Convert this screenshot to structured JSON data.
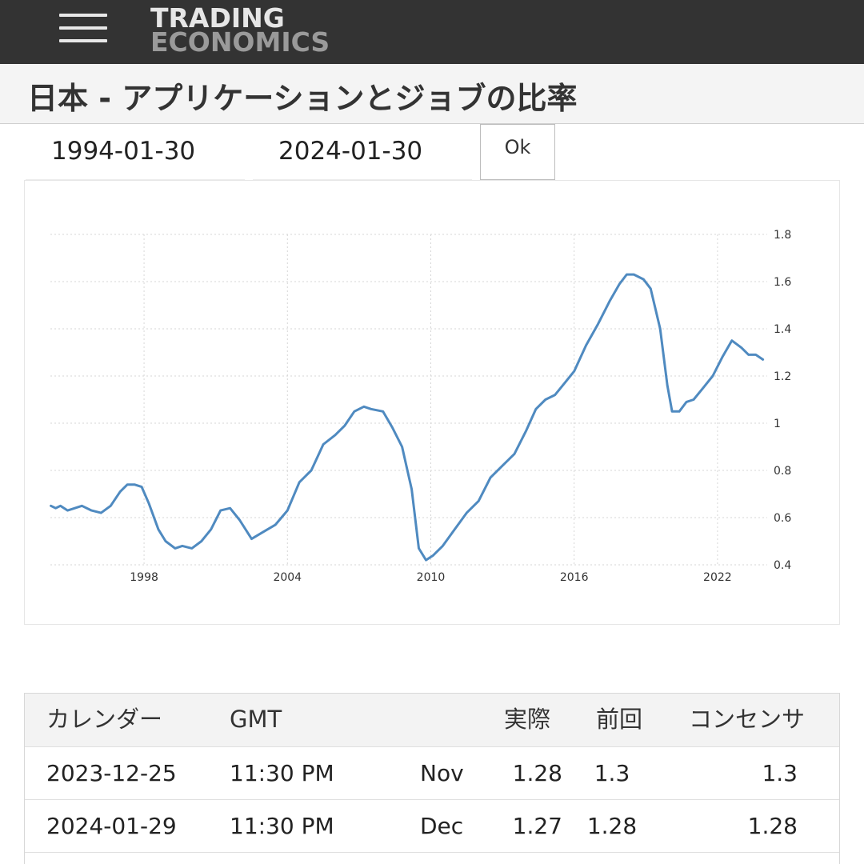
{
  "header": {
    "logo_line1": "TRADING",
    "logo_line2": "ECONOMICS",
    "bg_color": "#333333",
    "menu_icon": "hamburger-menu-icon"
  },
  "page": {
    "title": "日本 - アプリケーションとジョブの比率"
  },
  "date_range": {
    "start": "1994-01-30",
    "end": "2024-01-30",
    "ok_label": "Ok"
  },
  "chart_data": {
    "type": "line",
    "title": "",
    "xlabel": "",
    "ylabel": "",
    "x_ticks": [
      "1998",
      "2004",
      "2010",
      "2016",
      "2022"
    ],
    "y_ticks": [
      "0.4",
      "0.6",
      "0.8",
      "1",
      "1.2",
      "1.4",
      "1.6",
      "1.8"
    ],
    "ylim": [
      0.4,
      1.8
    ],
    "xlim": [
      1994.08,
      2024.08
    ],
    "grid": true,
    "line_color": "#4f8ac0",
    "series": [
      {
        "name": "",
        "x": [
          1994.1,
          1994.3,
          1994.5,
          1994.8,
          1995.1,
          1995.4,
          1995.8,
          1996.2,
          1996.6,
          1997.0,
          1997.3,
          1997.6,
          1997.9,
          1998.2,
          1998.6,
          1998.9,
          1999.3,
          1999.6,
          2000.0,
          2000.4,
          2000.8,
          2001.2,
          2001.6,
          2002.0,
          2002.5,
          2003.0,
          2003.5,
          2004.0,
          2004.5,
          2005.0,
          2005.5,
          2006.0,
          2006.4,
          2006.8,
          2007.2,
          2007.5,
          2008.0,
          2008.4,
          2008.8,
          2009.2,
          2009.5,
          2009.8,
          2010.1,
          2010.5,
          2011.0,
          2011.5,
          2012.0,
          2012.5,
          2013.0,
          2013.5,
          2014.0,
          2014.4,
          2014.8,
          2015.2,
          2015.6,
          2016.0,
          2016.5,
          2017.0,
          2017.5,
          2017.9,
          2018.2,
          2018.5,
          2018.9,
          2019.2,
          2019.6,
          2019.9,
          2020.1,
          2020.4,
          2020.7,
          2021.0,
          2021.4,
          2021.8,
          2022.2,
          2022.6,
          2023.0,
          2023.3,
          2023.6,
          2023.9
        ],
        "values": [
          0.65,
          0.64,
          0.65,
          0.63,
          0.64,
          0.65,
          0.63,
          0.62,
          0.65,
          0.71,
          0.74,
          0.74,
          0.73,
          0.66,
          0.55,
          0.5,
          0.47,
          0.48,
          0.47,
          0.5,
          0.55,
          0.63,
          0.64,
          0.59,
          0.51,
          0.54,
          0.57,
          0.63,
          0.75,
          0.8,
          0.91,
          0.95,
          0.99,
          1.05,
          1.07,
          1.06,
          1.05,
          0.98,
          0.9,
          0.72,
          0.47,
          0.42,
          0.44,
          0.48,
          0.55,
          0.62,
          0.67,
          0.77,
          0.82,
          0.87,
          0.97,
          1.06,
          1.1,
          1.12,
          1.17,
          1.22,
          1.33,
          1.42,
          1.52,
          1.59,
          1.63,
          1.63,
          1.61,
          1.57,
          1.4,
          1.16,
          1.05,
          1.05,
          1.09,
          1.1,
          1.15,
          1.2,
          1.28,
          1.35,
          1.32,
          1.29,
          1.29,
          1.27
        ]
      }
    ]
  },
  "calendar": {
    "headers": {
      "date": "カレンダー",
      "gmt": "GMT",
      "reference": "",
      "actual": "実際",
      "previous": "前回",
      "consensus": "コンセンサ"
    },
    "rows": [
      {
        "date": "2023-12-25",
        "time": "11:30 PM",
        "reference": "Nov",
        "actual": "1.28",
        "previous": "1.3",
        "consensus": "1.3"
      },
      {
        "date": "2024-01-29",
        "time": "11:30 PM",
        "reference": "Dec",
        "actual": "1.27",
        "previous": "1.28",
        "consensus": "1.28"
      }
    ]
  }
}
